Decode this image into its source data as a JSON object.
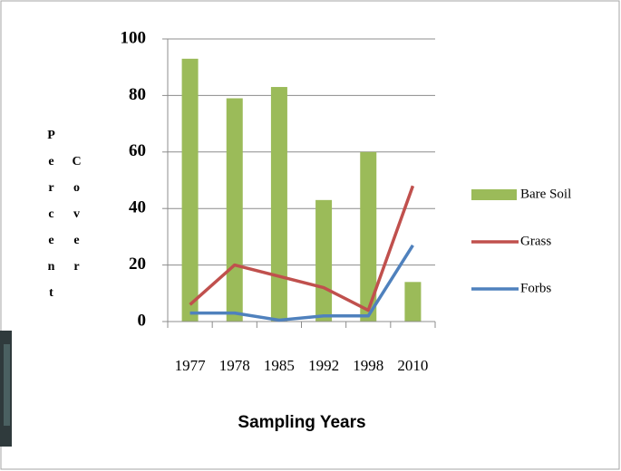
{
  "chart_data": {
    "type": "bar",
    "x_label": "Sampling Years",
    "y_label": "Percent Cover",
    "categories": [
      "1977",
      "1978",
      "1985",
      "1992",
      "1998",
      "2010"
    ],
    "series": [
      {
        "name": "Bare Soil",
        "type": "bar",
        "color": "#9bbb59",
        "values": [
          93,
          79,
          83,
          43,
          60,
          14
        ]
      },
      {
        "name": "Grass",
        "type": "line",
        "color": "#c0504d",
        "values": [
          6,
          20,
          16,
          12,
          4,
          48
        ]
      },
      {
        "name": "Forbs",
        "type": "line",
        "color": "#4f81bd",
        "values": [
          3,
          3,
          0.5,
          2,
          2,
          27
        ]
      }
    ],
    "ylim": [
      0,
      100
    ],
    "yticks": [
      0,
      20,
      40,
      60,
      80,
      100
    ],
    "grid": true,
    "legend": "right"
  }
}
